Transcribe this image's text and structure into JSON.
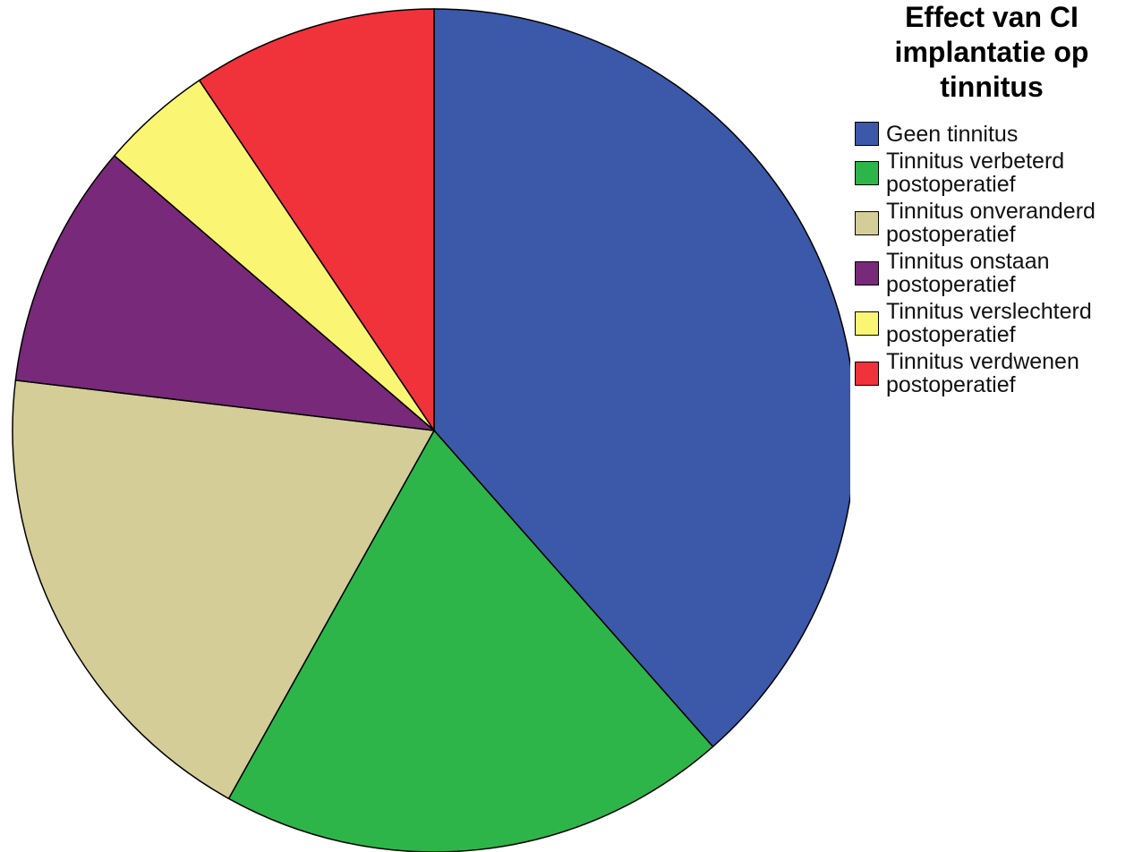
{
  "chart_data": {
    "type": "pie",
    "title": "Effect van CI implantatie op tinnitus",
    "categories": [
      "Geen tinnitus",
      "Tinnitus verbeterd postoperatief",
      "Tinnitus onveranderd postoperatief",
      "Tinnitus onstaan postoperatief",
      "Tinnitus verslechterd postoperatief",
      "Tinnitus verdwenen postoperatief"
    ],
    "values": [
      38.5,
      19.6,
      18.8,
      9.4,
      4.3,
      9.4
    ],
    "colors": [
      "#3c58a9",
      "#2db54a",
      "#d4cd98",
      "#782979",
      "#faf673",
      "#f0323a"
    ],
    "legend": "right"
  }
}
